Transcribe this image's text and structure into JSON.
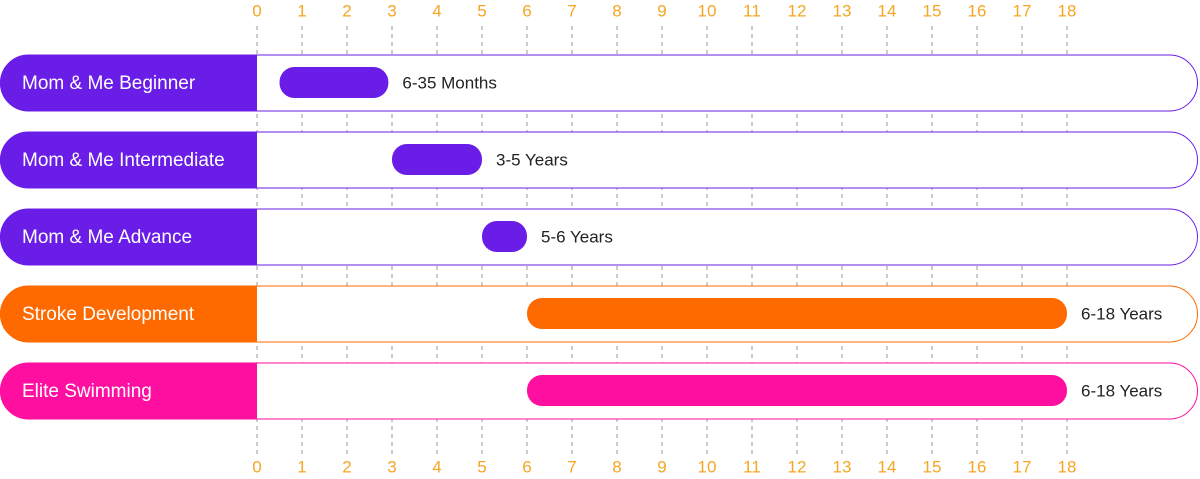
{
  "chart_data": {
    "type": "range",
    "categories": [
      "Mom & Me Beginner",
      "Mom & Me Intermediate",
      "Mom & Me Advance",
      "Stroke Development",
      "Elite Swimming"
    ],
    "start": [
      0.5,
      3,
      5,
      6,
      6
    ],
    "end": [
      2.92,
      5,
      6,
      18,
      18
    ],
    "labels": [
      "6-35 Months",
      "3-5 Years",
      "5-6 Years",
      "6-18 Years",
      "6-18 Years"
    ],
    "colors": [
      "#6b1de8",
      "#6b1de8",
      "#6b1de8",
      "#ff6a00",
      "#ff0fa0"
    ],
    "xlim": [
      0,
      18
    ],
    "xticks": [
      0,
      1,
      2,
      3,
      4,
      5,
      6,
      7,
      8,
      9,
      10,
      11,
      12,
      13,
      14,
      15,
      16,
      17,
      18
    ],
    "grid": true
  }
}
